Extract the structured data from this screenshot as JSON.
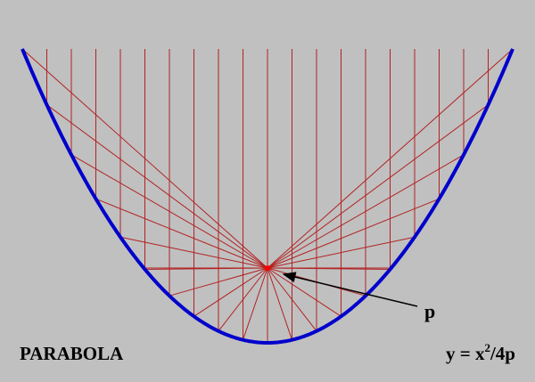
{
  "title": "PARABOLA",
  "focus_label": "p",
  "equation": {
    "base": "y = x",
    "exponent": "2",
    "rest": "/4p"
  }
}
